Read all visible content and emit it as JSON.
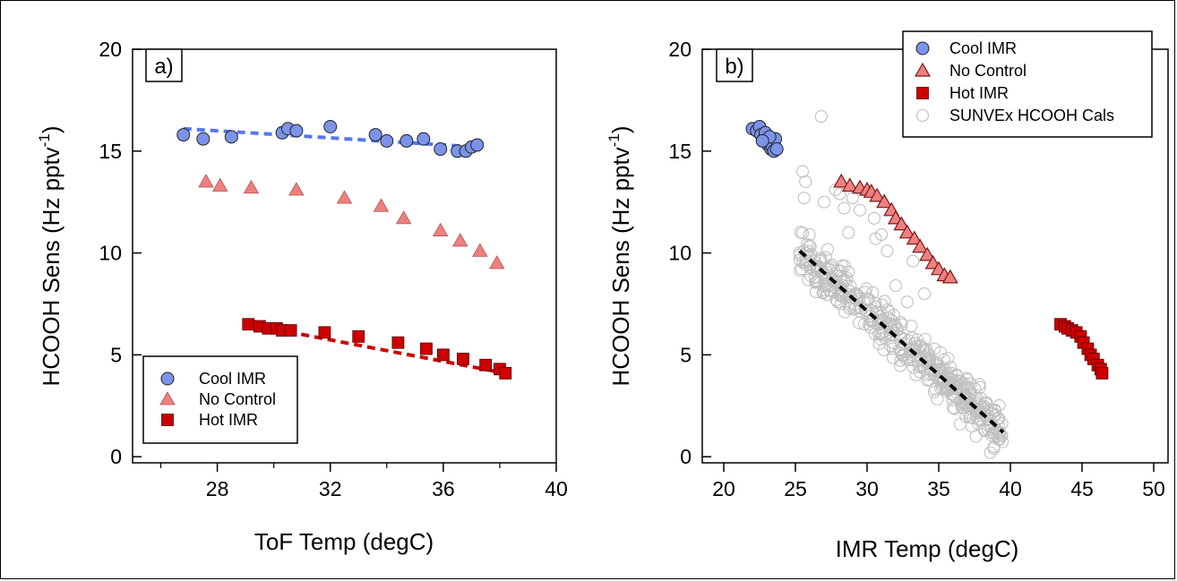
{
  "chart_data": [
    {
      "panel_label": "a)",
      "type": "scatter",
      "xlabel": "ToF Temp (degC)",
      "ylabel": "HCOOH Sens (Hz pptv",
      "ylabel_superscript": "-1",
      "ylabel_close": ")",
      "xlim": [
        25,
        40
      ],
      "ylim": [
        -0.3,
        20
      ],
      "xticks": [
        28,
        32,
        36,
        40
      ],
      "xticks_minor": [
        26,
        30,
        34,
        38
      ],
      "yticks": [
        0,
        5,
        10,
        15,
        20
      ],
      "legend_position": "bottom-left",
      "series": [
        {
          "name": "Cool IMR",
          "marker": "circle",
          "color": "#7b93e8",
          "x": [
            26.8,
            27.5,
            28.5,
            30.3,
            30.5,
            30.8,
            32.0,
            33.6,
            34.0,
            34.7,
            35.3,
            35.9,
            36.5,
            36.8,
            37.0,
            37.2
          ],
          "y": [
            15.8,
            15.6,
            15.7,
            15.9,
            16.1,
            16.0,
            16.2,
            15.8,
            15.5,
            15.5,
            15.6,
            15.1,
            15.0,
            15.0,
            15.2,
            15.3
          ],
          "fit": {
            "x": [
              26.8,
              37.2
            ],
            "y": [
              16.1,
              15.2
            ],
            "color": "#5577ee"
          }
        },
        {
          "name": "No Control",
          "marker": "triangle",
          "color": "#f08080",
          "x": [
            27.6,
            28.1,
            29.2,
            30.8,
            32.5,
            33.8,
            34.6,
            35.9,
            36.6,
            37.3,
            37.9
          ],
          "y": [
            13.5,
            13.3,
            13.2,
            13.1,
            12.7,
            12.3,
            11.7,
            11.1,
            10.6,
            10.1,
            9.5
          ]
        },
        {
          "name": "Hot IMR",
          "marker": "square",
          "color": "#cc0000",
          "x": [
            29.1,
            29.5,
            29.8,
            30.1,
            30.3,
            30.6,
            31.8,
            33.0,
            34.4,
            35.4,
            36.0,
            36.7,
            37.5,
            38.0,
            38.2
          ],
          "y": [
            6.5,
            6.4,
            6.3,
            6.3,
            6.2,
            6.2,
            6.1,
            5.9,
            5.6,
            5.3,
            5.0,
            4.8,
            4.5,
            4.3,
            4.1
          ],
          "fit": {
            "x": [
              29.1,
              38.2
            ],
            "y": [
              6.5,
              4.1
            ],
            "color": "#cc0000"
          }
        }
      ]
    },
    {
      "panel_label": "b)",
      "type": "scatter",
      "xlabel": "IMR Temp (degC)",
      "ylabel": "HCOOH Sens (Hz pptv",
      "ylabel_superscript": "-1",
      "ylabel_close": ")",
      "xlim": [
        18.5,
        51
      ],
      "ylim": [
        -0.3,
        20
      ],
      "xticks": [
        20,
        25,
        30,
        35,
        40,
        45,
        50
      ],
      "yticks": [
        0,
        5,
        10,
        15,
        20
      ],
      "legend_position": "top-right",
      "series": [
        {
          "name": "Cool IMR",
          "marker": "circle",
          "color": "#7b93e8",
          "x": [
            22.0,
            22.3,
            22.5,
            22.6,
            22.8,
            22.9,
            23.0,
            23.1,
            23.2,
            23.3,
            23.4,
            23.5,
            23.6,
            23.7,
            23.2,
            22.7
          ],
          "y": [
            16.1,
            16.0,
            16.2,
            15.8,
            15.6,
            15.9,
            15.5,
            15.3,
            15.6,
            15.1,
            15.2,
            15.0,
            15.6,
            15.1,
            15.7,
            15.5
          ]
        },
        {
          "name": "No Control",
          "marker": "triangle",
          "color": "#f08080",
          "x": [
            28.2,
            28.8,
            29.5,
            30.0,
            30.3,
            30.7,
            31.2,
            31.7,
            32.0,
            32.4,
            32.8,
            33.3,
            33.7,
            34.2,
            34.6,
            35.0,
            35.4,
            35.8
          ],
          "y": [
            13.5,
            13.3,
            13.2,
            13.1,
            13.0,
            12.8,
            12.5,
            12.1,
            11.7,
            11.4,
            11.0,
            10.7,
            10.3,
            9.9,
            9.5,
            9.2,
            8.9,
            8.8
          ],
          "outlined": true
        },
        {
          "name": "Hot IMR",
          "marker": "square",
          "color": "#cc0000",
          "x": [
            43.5,
            43.8,
            44.0,
            44.3,
            44.6,
            44.9,
            45.1,
            45.4,
            45.6,
            45.8,
            46.1,
            46.3,
            46.4
          ],
          "y": [
            6.5,
            6.4,
            6.3,
            6.2,
            6.1,
            5.9,
            5.6,
            5.3,
            5.0,
            4.8,
            4.5,
            4.3,
            4.1
          ]
        },
        {
          "name": "SUNVEx HCOOH Cals",
          "marker": "open-circle",
          "color": "#c0c0c0",
          "cluster": {
            "x_from": 25.3,
            "x_to": 39.5,
            "y_at_from": 10.1,
            "y_at_to": 1.2,
            "count": 420,
            "spread": 1.0
          },
          "x": [
            25.5,
            25.7,
            26.8,
            25.6,
            27.8,
            28.1,
            28.4,
            29.0,
            30.6,
            31.4,
            32.0,
            33.2,
            34.0,
            38.6,
            37.3,
            30.5,
            31.0,
            27.0,
            29.5,
            36.0,
            36.5,
            37.6,
            28.7,
            32.8
          ],
          "y": [
            14.0,
            13.5,
            16.7,
            12.7,
            13.1,
            12.9,
            12.2,
            12.7,
            10.7,
            10.1,
            8.4,
            9.6,
            8.0,
            0.2,
            1.5,
            11.7,
            10.9,
            12.5,
            12.1,
            2.4,
            1.6,
            1.0,
            11.0,
            7.6
          ]
        }
      ],
      "trend_line": {
        "x": [
          25.3,
          39.5
        ],
        "y": [
          10.1,
          1.2
        ],
        "color": "#000000",
        "dash": true
      }
    }
  ]
}
